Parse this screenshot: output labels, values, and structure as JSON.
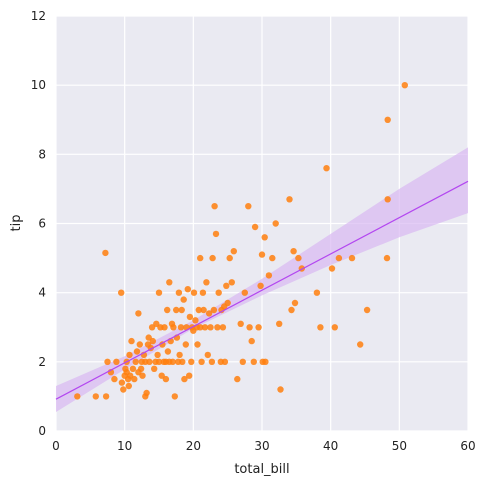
{
  "chart_data": {
    "type": "scatter",
    "title": "",
    "xlabel": "total_bill",
    "ylabel": "tip",
    "xlim": [
      0,
      60
    ],
    "ylim": [
      0,
      12
    ],
    "xticks": [
      0,
      10,
      20,
      30,
      40,
      50,
      60
    ],
    "yticks": [
      0,
      2,
      4,
      6,
      8,
      10,
      12
    ],
    "grid": true,
    "style": "darkgrid",
    "colors": {
      "background": "#EAEAF2",
      "grid": "#FFFFFF",
      "points": "#FF7F0E",
      "regression_line": "#B347F0",
      "confidence_band": "#D9B8F2"
    },
    "regression": {
      "intercept": 0.92,
      "slope": 0.105,
      "ci_band": [
        {
          "x": 0,
          "lower": 0.55,
          "upper": 1.3
        },
        {
          "x": 10,
          "lower": 1.78,
          "upper": 2.16
        },
        {
          "x": 20,
          "lower": 2.96,
          "upper": 3.2
        },
        {
          "x": 30,
          "lower": 3.92,
          "upper": 4.4
        },
        {
          "x": 40,
          "lower": 4.8,
          "upper": 5.7
        },
        {
          "x": 50,
          "lower": 5.6,
          "upper": 7.0
        },
        {
          "x": 60,
          "lower": 6.3,
          "upper": 8.2
        }
      ]
    },
    "points": [
      {
        "x": 3.1,
        "y": 1.0
      },
      {
        "x": 5.8,
        "y": 1.0
      },
      {
        "x": 7.2,
        "y": 5.15
      },
      {
        "x": 7.3,
        "y": 1.0
      },
      {
        "x": 7.5,
        "y": 2.0
      },
      {
        "x": 8.0,
        "y": 1.7
      },
      {
        "x": 8.5,
        "y": 1.5
      },
      {
        "x": 8.8,
        "y": 2.0
      },
      {
        "x": 9.5,
        "y": 4.0
      },
      {
        "x": 9.6,
        "y": 1.4
      },
      {
        "x": 9.8,
        "y": 1.2
      },
      {
        "x": 10.0,
        "y": 1.6
      },
      {
        "x": 10.1,
        "y": 1.8
      },
      {
        "x": 10.3,
        "y": 1.7
      },
      {
        "x": 10.3,
        "y": 2.0
      },
      {
        "x": 10.5,
        "y": 1.5
      },
      {
        "x": 10.6,
        "y": 1.3
      },
      {
        "x": 10.7,
        "y": 2.2
      },
      {
        "x": 10.8,
        "y": 1.6
      },
      {
        "x": 11.0,
        "y": 2.6
      },
      {
        "x": 11.2,
        "y": 1.8
      },
      {
        "x": 11.4,
        "y": 1.5
      },
      {
        "x": 11.6,
        "y": 2.0
      },
      {
        "x": 11.8,
        "y": 2.3
      },
      {
        "x": 12.0,
        "y": 1.7
      },
      {
        "x": 12.0,
        "y": 3.4
      },
      {
        "x": 12.2,
        "y": 2.5
      },
      {
        "x": 12.4,
        "y": 1.8
      },
      {
        "x": 12.5,
        "y": 2.0
      },
      {
        "x": 12.6,
        "y": 1.6
      },
      {
        "x": 12.8,
        "y": 2.2
      },
      {
        "x": 13.0,
        "y": 2.0
      },
      {
        "x": 13.0,
        "y": 1.0
      },
      {
        "x": 13.2,
        "y": 1.1
      },
      {
        "x": 13.4,
        "y": 2.5
      },
      {
        "x": 13.5,
        "y": 2.7
      },
      {
        "x": 13.6,
        "y": 2.0
      },
      {
        "x": 13.8,
        "y": 2.4
      },
      {
        "x": 14.0,
        "y": 3.0
      },
      {
        "x": 14.1,
        "y": 2.6
      },
      {
        "x": 14.3,
        "y": 1.8
      },
      {
        "x": 14.5,
        "y": 2.0
      },
      {
        "x": 14.6,
        "y": 3.1
      },
      {
        "x": 14.8,
        "y": 2.2
      },
      {
        "x": 15.0,
        "y": 4.0
      },
      {
        "x": 15.0,
        "y": 2.0
      },
      {
        "x": 15.2,
        "y": 3.0
      },
      {
        "x": 15.4,
        "y": 1.6
      },
      {
        "x": 15.5,
        "y": 2.5
      },
      {
        "x": 15.7,
        "y": 2.0
      },
      {
        "x": 15.8,
        "y": 3.0
      },
      {
        "x": 16.0,
        "y": 1.5
      },
      {
        "x": 16.0,
        "y": 2.0
      },
      {
        "x": 16.2,
        "y": 3.5
      },
      {
        "x": 16.3,
        "y": 2.3
      },
      {
        "x": 16.5,
        "y": 2.0
      },
      {
        "x": 16.5,
        "y": 4.3
      },
      {
        "x": 16.7,
        "y": 2.6
      },
      {
        "x": 16.9,
        "y": 3.1
      },
      {
        "x": 17.0,
        "y": 2.0
      },
      {
        "x": 17.1,
        "y": 3.0
      },
      {
        "x": 17.3,
        "y": 1.0
      },
      {
        "x": 17.5,
        "y": 3.5
      },
      {
        "x": 17.6,
        "y": 2.7
      },
      {
        "x": 17.8,
        "y": 2.0
      },
      {
        "x": 17.9,
        "y": 4.0
      },
      {
        "x": 18.0,
        "y": 2.2
      },
      {
        "x": 18.2,
        "y": 3.0
      },
      {
        "x": 18.3,
        "y": 3.5
      },
      {
        "x": 18.4,
        "y": 2.0
      },
      {
        "x": 18.6,
        "y": 3.8
      },
      {
        "x": 18.7,
        "y": 1.5
      },
      {
        "x": 18.9,
        "y": 2.5
      },
      {
        "x": 19.0,
        "y": 3.0
      },
      {
        "x": 19.2,
        "y": 4.1
      },
      {
        "x": 19.4,
        "y": 1.6
      },
      {
        "x": 19.5,
        "y": 3.3
      },
      {
        "x": 19.7,
        "y": 2.0
      },
      {
        "x": 19.8,
        "y": 3.0
      },
      {
        "x": 20.0,
        "y": 2.9
      },
      {
        "x": 20.1,
        "y": 4.0
      },
      {
        "x": 20.3,
        "y": 3.2
      },
      {
        "x": 20.5,
        "y": 3.0
      },
      {
        "x": 20.6,
        "y": 2.5
      },
      {
        "x": 20.8,
        "y": 3.5
      },
      {
        "x": 21.0,
        "y": 3.0
      },
      {
        "x": 21.0,
        "y": 5.0
      },
      {
        "x": 21.2,
        "y": 2.0
      },
      {
        "x": 21.4,
        "y": 4.0
      },
      {
        "x": 21.5,
        "y": 3.5
      },
      {
        "x": 21.7,
        "y": 3.0
      },
      {
        "x": 21.9,
        "y": 4.3
      },
      {
        "x": 22.1,
        "y": 2.2
      },
      {
        "x": 22.3,
        "y": 3.4
      },
      {
        "x": 22.5,
        "y": 3.0
      },
      {
        "x": 22.7,
        "y": 2.0
      },
      {
        "x": 22.8,
        "y": 5.0
      },
      {
        "x": 23.0,
        "y": 3.5
      },
      {
        "x": 23.1,
        "y": 6.5
      },
      {
        "x": 23.3,
        "y": 5.7
      },
      {
        "x": 23.5,
        "y": 3.0
      },
      {
        "x": 23.7,
        "y": 4.0
      },
      {
        "x": 24.0,
        "y": 2.0
      },
      {
        "x": 24.1,
        "y": 3.5
      },
      {
        "x": 24.3,
        "y": 3.0
      },
      {
        "x": 24.5,
        "y": 3.6
      },
      {
        "x": 24.6,
        "y": 2.0
      },
      {
        "x": 24.8,
        "y": 4.2
      },
      {
        "x": 25.0,
        "y": 3.7
      },
      {
        "x": 25.3,
        "y": 5.0
      },
      {
        "x": 25.6,
        "y": 4.3
      },
      {
        "x": 25.9,
        "y": 5.2
      },
      {
        "x": 26.4,
        "y": 1.5
      },
      {
        "x": 26.9,
        "y": 3.1
      },
      {
        "x": 27.2,
        "y": 2.0
      },
      {
        "x": 27.5,
        "y": 4.0
      },
      {
        "x": 28.0,
        "y": 6.5
      },
      {
        "x": 28.2,
        "y": 3.0
      },
      {
        "x": 28.5,
        "y": 2.6
      },
      {
        "x": 28.8,
        "y": 2.0
      },
      {
        "x": 29.0,
        "y": 5.9
      },
      {
        "x": 29.5,
        "y": 3.0
      },
      {
        "x": 29.8,
        "y": 4.2
      },
      {
        "x": 30.0,
        "y": 5.1
      },
      {
        "x": 30.1,
        "y": 2.0
      },
      {
        "x": 30.4,
        "y": 5.6
      },
      {
        "x": 30.5,
        "y": 2.0
      },
      {
        "x": 31.0,
        "y": 4.5
      },
      {
        "x": 31.5,
        "y": 5.0
      },
      {
        "x": 32.0,
        "y": 6.0
      },
      {
        "x": 32.5,
        "y": 3.1
      },
      {
        "x": 32.7,
        "y": 1.2
      },
      {
        "x": 34.0,
        "y": 6.7
      },
      {
        "x": 34.3,
        "y": 3.5
      },
      {
        "x": 34.6,
        "y": 5.2
      },
      {
        "x": 34.8,
        "y": 3.7
      },
      {
        "x": 35.3,
        "y": 5.0
      },
      {
        "x": 35.8,
        "y": 4.7
      },
      {
        "x": 38.0,
        "y": 4.0
      },
      {
        "x": 38.5,
        "y": 3.0
      },
      {
        "x": 39.4,
        "y": 7.6
      },
      {
        "x": 40.2,
        "y": 4.7
      },
      {
        "x": 40.6,
        "y": 3.0
      },
      {
        "x": 41.2,
        "y": 5.0
      },
      {
        "x": 43.1,
        "y": 5.0
      },
      {
        "x": 44.3,
        "y": 2.5
      },
      {
        "x": 45.3,
        "y": 3.5
      },
      {
        "x": 48.2,
        "y": 5.0
      },
      {
        "x": 48.3,
        "y": 6.7
      },
      {
        "x": 48.3,
        "y": 9.0
      },
      {
        "x": 50.8,
        "y": 10.0
      }
    ]
  }
}
